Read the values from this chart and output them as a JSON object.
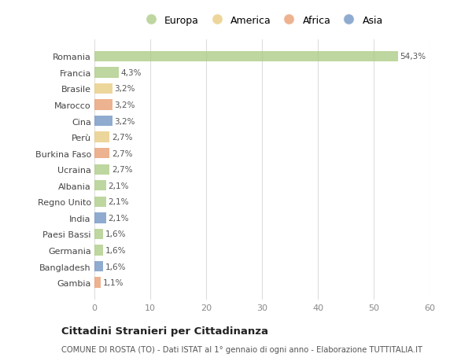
{
  "categories": [
    "Romania",
    "Francia",
    "Brasile",
    "Marocco",
    "Cina",
    "Perù",
    "Burkina Faso",
    "Ucraina",
    "Albania",
    "Regno Unito",
    "India",
    "Paesi Bassi",
    "Germania",
    "Bangladesh",
    "Gambia"
  ],
  "values": [
    54.3,
    4.3,
    3.2,
    3.2,
    3.2,
    2.7,
    2.7,
    2.7,
    2.1,
    2.1,
    2.1,
    1.6,
    1.6,
    1.6,
    1.1
  ],
  "labels": [
    "54,3%",
    "4,3%",
    "3,2%",
    "3,2%",
    "3,2%",
    "2,7%",
    "2,7%",
    "2,7%",
    "2,1%",
    "2,1%",
    "2,1%",
    "1,6%",
    "1,6%",
    "1,6%",
    "1,1%"
  ],
  "colors": [
    "#a8c97f",
    "#a8c97f",
    "#e8c97a",
    "#e8986a",
    "#6a8fc0",
    "#e8c97a",
    "#e8986a",
    "#a8c97f",
    "#a8c97f",
    "#a8c97f",
    "#6a8fc0",
    "#a8c97f",
    "#a8c97f",
    "#6a8fc0",
    "#e8986a"
  ],
  "continent_colors": {
    "Europa": "#a8c97f",
    "America": "#e8c97a",
    "Africa": "#e8986a",
    "Asia": "#6a8fc0"
  },
  "xlim": [
    0,
    60
  ],
  "xticks": [
    0,
    10,
    20,
    30,
    40,
    50,
    60
  ],
  "title": "Cittadini Stranieri per Cittadinanza",
  "subtitle": "COMUNE DI ROSTA (TO) - Dati ISTAT al 1° gennaio di ogni anno - Elaborazione TUTTITALIA.IT",
  "bg_color": "#ffffff",
  "grid_color": "#dddddd",
  "bar_alpha": 0.75,
  "bar_height": 0.65
}
